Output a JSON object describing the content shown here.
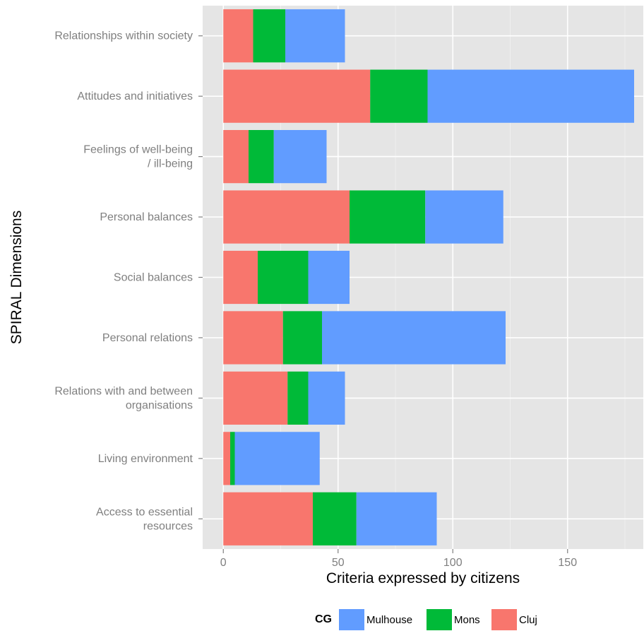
{
  "chart_data": {
    "type": "bar",
    "orientation": "horizontal",
    "stacked": true,
    "categories": [
      [
        "Relationships within society"
      ],
      [
        "Attitudes and initiatives"
      ],
      [
        "Feelings of well-being",
        "/ ill-being"
      ],
      [
        "Personal balances"
      ],
      [
        "Social balances"
      ],
      [
        "Personal relations"
      ],
      [
        "Relations with and between",
        "organisations"
      ],
      [
        "Living environment"
      ],
      [
        "Access to essential",
        "resources"
      ]
    ],
    "series": [
      {
        "name": "Cluj",
        "color": "#F8766D",
        "values": [
          13,
          64,
          11,
          55,
          15,
          26,
          28,
          3,
          39
        ]
      },
      {
        "name": "Mons",
        "color": "#00BA38",
        "values": [
          14,
          25,
          11,
          33,
          22,
          17,
          9,
          2,
          19
        ]
      },
      {
        "name": "Mulhouse",
        "color": "#619CFF",
        "values": [
          26,
          90,
          23,
          34,
          18,
          80,
          16,
          37,
          35
        ]
      }
    ],
    "xlabel": "Criteria expressed by citizens",
    "ylabel": "SPIRAL Dimensions",
    "xlim": [
      -9,
      183
    ],
    "xticks": [
      0,
      50,
      100,
      150
    ],
    "grid": true,
    "legend": {
      "title": "CG",
      "position": "bottom",
      "order": [
        "Mulhouse",
        "Mons",
        "Cluj"
      ]
    }
  }
}
